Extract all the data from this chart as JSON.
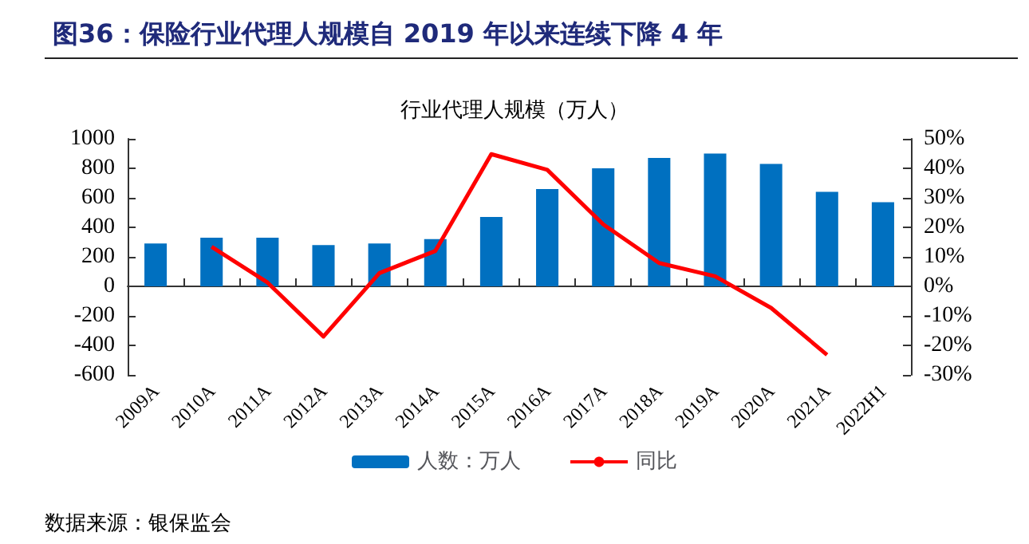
{
  "chart_data": {
    "type": "bar",
    "title": "图36：保险行业代理人规模自 2019 年以来连续下降 4 年",
    "subtitle": "行业代理人规模（万人）",
    "categories": [
      "2009A",
      "2010A",
      "2011A",
      "2012A",
      "2013A",
      "2014A",
      "2015A",
      "2016A",
      "2017A",
      "2018A",
      "2019A",
      "2020A",
      "2021A",
      "2022H1"
    ],
    "series": [
      {
        "name": "人数：万人",
        "color": "#0070c0",
        "values": [
          290,
          330,
          330,
          280,
          290,
          320,
          470,
          660,
          800,
          870,
          900,
          830,
          640,
          570
        ]
      },
      {
        "name": "同比",
        "type": "line",
        "axis": "y2",
        "color": "#ff0000",
        "marker": "none",
        "values": [
          null,
          13.4,
          1.3,
          -17,
          4.5,
          12,
          44.8,
          39.5,
          21,
          7.9,
          3.4,
          -7.3,
          -23.2,
          null
        ]
      }
    ],
    "ylim": [
      -600,
      1000
    ],
    "yticks": [
      -600,
      -400,
      -200,
      0,
      200,
      400,
      600,
      800,
      1000
    ],
    "y2lim": [
      -30,
      50
    ],
    "y2ticks": [
      {
        "value": -30,
        "label": "-30%"
      },
      {
        "value": -20,
        "label": "-20%"
      },
      {
        "value": -10,
        "label": "-10%"
      },
      {
        "value": 0,
        "label": "0%"
      },
      {
        "value": 10,
        "label": "10%"
      },
      {
        "value": 20,
        "label": "20%"
      },
      {
        "value": 30,
        "label": "30%"
      },
      {
        "value": 40,
        "label": "40%"
      },
      {
        "value": 50,
        "label": "50%"
      }
    ],
    "legend": "bottom",
    "annotations": [
      "数据来源：银保监会"
    ]
  }
}
